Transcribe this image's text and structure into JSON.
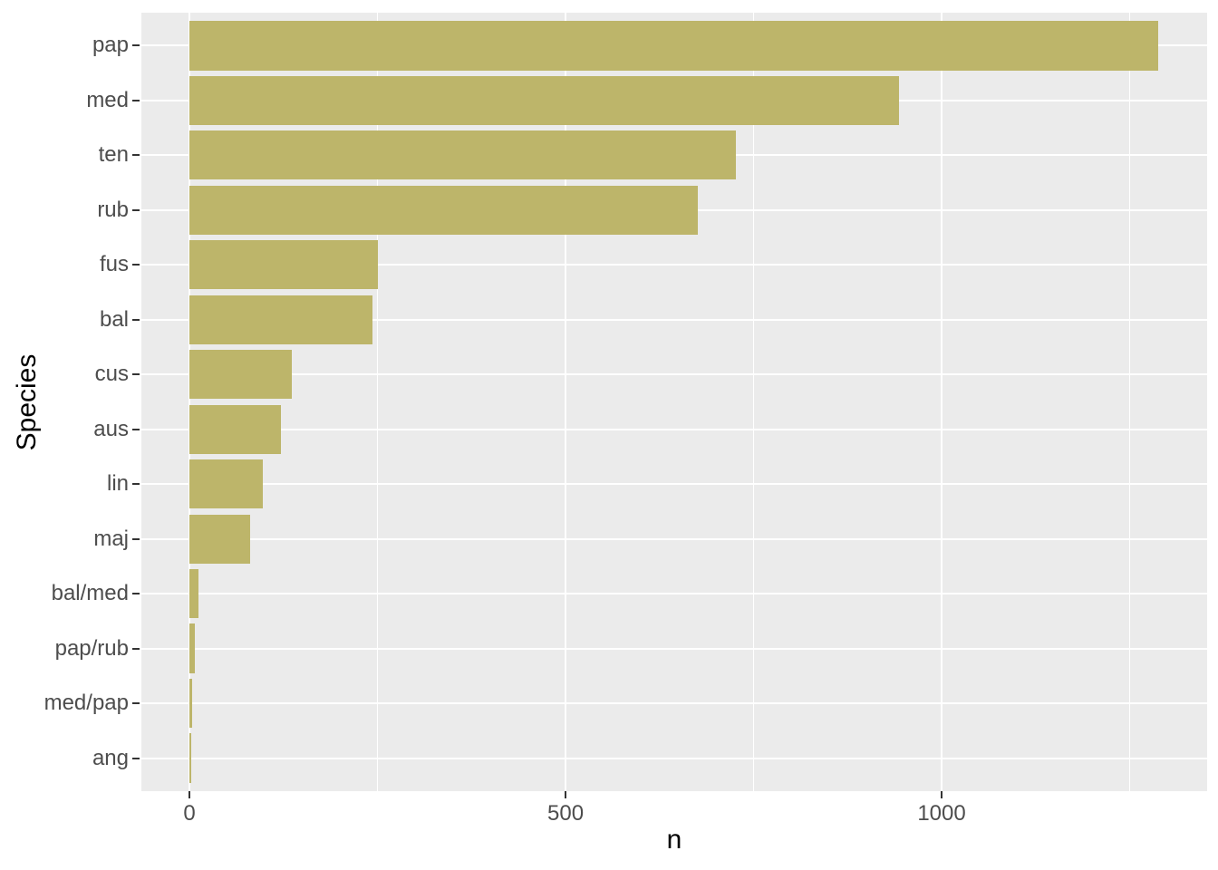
{
  "chart_data": {
    "type": "bar",
    "orientation": "horizontal",
    "title": "",
    "xlabel": "n",
    "ylabel": "Species",
    "categories": [
      "pap",
      "med",
      "ten",
      "rub",
      "fus",
      "bal",
      "cus",
      "aus",
      "lin",
      "maj",
      "bal/med",
      "pap/rub",
      "med/pap",
      "ang"
    ],
    "values": [
      1288,
      943,
      727,
      676,
      251,
      243,
      136,
      122,
      97,
      80,
      12,
      7,
      3,
      2
    ],
    "x_ticks": [
      0,
      500,
      1000
    ],
    "x_tick_labels": [
      "0",
      "500",
      "1000"
    ],
    "x_minor_ticks": [
      250,
      750,
      1250
    ],
    "xlim": [
      -64,
      1353
    ],
    "grid": true,
    "legend_position": "none",
    "colors": {
      "bar_fill": "#BDB56A",
      "panel_background": "#EBEBEB",
      "gridline": "#FFFFFF",
      "tick_text": "#4D4D4D",
      "tick_mark": "#333333",
      "axis_title": "#000000",
      "figure_background": "#FFFFFF"
    }
  }
}
